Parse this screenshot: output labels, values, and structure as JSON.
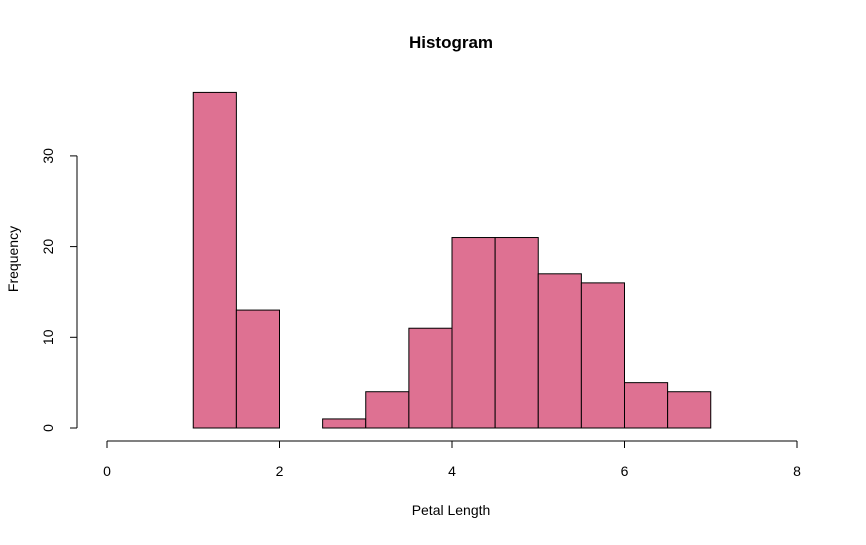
{
  "chart_data": {
    "type": "bar",
    "subtype": "histogram",
    "title": "Histogram",
    "xlabel": "Petal Length",
    "ylabel": "Frequency",
    "bar_color": "#DE7192",
    "bins": [
      {
        "from": 1.0,
        "to": 1.5,
        "count": 37
      },
      {
        "from": 1.5,
        "to": 2.0,
        "count": 13
      },
      {
        "from": 2.0,
        "to": 2.5,
        "count": 0
      },
      {
        "from": 2.5,
        "to": 3.0,
        "count": 1
      },
      {
        "from": 3.0,
        "to": 3.5,
        "count": 4
      },
      {
        "from": 3.5,
        "to": 4.0,
        "count": 11
      },
      {
        "from": 4.0,
        "to": 4.5,
        "count": 21
      },
      {
        "from": 4.5,
        "to": 5.0,
        "count": 21
      },
      {
        "from": 5.0,
        "to": 5.5,
        "count": 17
      },
      {
        "from": 5.5,
        "to": 6.0,
        "count": 16
      },
      {
        "from": 6.0,
        "to": 6.5,
        "count": 5
      },
      {
        "from": 6.5,
        "to": 7.0,
        "count": 4
      }
    ],
    "xlim": [
      0,
      8
    ],
    "ylim": [
      0,
      37
    ],
    "x_ticks": [
      "0",
      "2",
      "4",
      "6",
      "8"
    ],
    "y_ticks": [
      "0",
      "10",
      "20",
      "30"
    ],
    "grid": false,
    "legend": "none"
  }
}
